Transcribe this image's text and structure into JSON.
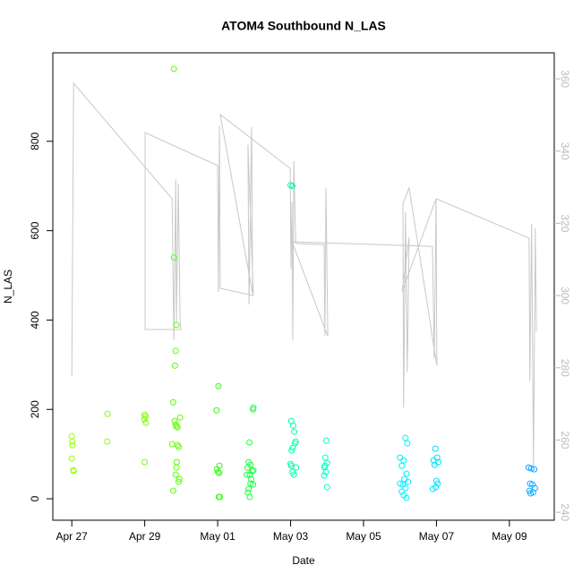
{
  "chart_data": {
    "type": "scatter",
    "title": "ATOM4 Southbound N_LAS",
    "x_label": "Date",
    "y_label": "N_LAS",
    "xlim": [
      -0.52,
      13.23
    ],
    "xticks": [
      {
        "value": 0,
        "label": "Apr 27"
      },
      {
        "value": 2,
        "label": "Apr 29"
      },
      {
        "value": 4,
        "label": "May 01"
      },
      {
        "value": 6,
        "label": "May 03"
      },
      {
        "value": 8,
        "label": "May 05"
      },
      {
        "value": 10,
        "label": "May 07"
      },
      {
        "value": 12,
        "label": "May 09"
      }
    ],
    "ylim": [
      -48,
      998
    ],
    "yticks": [
      0,
      200,
      400,
      600,
      800
    ],
    "y2lim": [
      237.8,
      367.2
    ],
    "y2ticks": [
      240,
      260,
      280,
      300,
      320,
      340,
      360
    ],
    "series": [
      {
        "type": "line",
        "axis": "y2",
        "color": "#c8c8c8",
        "x": [
          0,
          0.05,
          2.75,
          2.8,
          2.85,
          2.87,
          2.92,
          2.97,
          2.99,
          2.01,
          2.01,
          4.0,
          4.02,
          4.05,
          4.07,
          4.98,
          4.83,
          4.86,
          4.93,
          4.96,
          4.07,
          5.99,
          6.01,
          6.04,
          6.06,
          6.09,
          6.14,
          6.92,
          6.94,
          6.97,
          7.02,
          6.04,
          9.89,
          9.94,
          9.99,
          10.01,
          9.25,
          9.08,
          9.1,
          9.15,
          9.2,
          9.25,
          9.06,
          9.99,
          12.54,
          12.56,
          12.61,
          12.66,
          12.71,
          12.74
        ],
        "values": [
          277.7,
          358.8,
          326.8,
          287.6,
          332.2,
          292.6,
          331.0,
          292.6,
          290.6,
          290.6,
          345.1,
          336.0,
          301.0,
          347.1,
          302.0,
          300.0,
          341.7,
          297.5,
          346.6,
          300.5,
          350.1,
          335.2,
          307.4,
          326.0,
          287.6,
          337.2,
          314.4,
          314.1,
          288.8,
          329.8,
          288.8,
          314.9,
          313.6,
          282.6,
          326.8,
          280.7,
          329.8,
          325.3,
          269.0,
          323.1,
          278.9,
          316.1,
          301.2,
          326.8,
          315.9,
          276.4,
          319.8,
          252.9,
          318.6,
          290.1
        ]
      },
      {
        "type": "scatter",
        "color": "#9cff00",
        "x": [
          0,
          0.01,
          0.02,
          0.0,
          0.04,
          0.05
        ],
        "values": [
          140,
          128,
          120,
          90,
          64,
          62
        ]
      },
      {
        "type": "scatter",
        "color": "#8cff00",
        "x": [
          0.98,
          0.97
        ],
        "values": [
          190,
          128
        ]
      },
      {
        "type": "scatter",
        "color": "#7cff00",
        "x": [
          2.0,
          2.02,
          1.99,
          2.03,
          2.0
        ],
        "values": [
          188,
          184,
          178,
          170,
          82
        ]
      },
      {
        "type": "scatter",
        "color": "#5cff00",
        "x": [
          2.8,
          2.8,
          2.87,
          2.85,
          2.83,
          2.78,
          2.82,
          2.85,
          2.87,
          2.97,
          2.9,
          2.75,
          2.9,
          2.93,
          2.88,
          2.87,
          2.85,
          2.95,
          2.93,
          2.78
        ],
        "values": [
          962,
          540,
          389,
          331,
          298,
          216,
          174,
          166,
          162,
          182,
          160,
          122,
          120,
          116,
          82,
          70,
          54,
          44,
          38,
          18
        ]
      },
      {
        "type": "scatter",
        "color": "#33ff10",
        "x": [
          4.02,
          3.97,
          4.05,
          3.98,
          4.01,
          4.04,
          4.03,
          4.06
        ],
        "values": [
          252,
          198,
          74,
          66,
          60,
          58,
          4,
          4
        ]
      },
      {
        "type": "scatter",
        "color": "#1eff40",
        "x": [
          4.98,
          4.97,
          4.87,
          4.85,
          4.9,
          4.82,
          4.95,
          4.88,
          4.92,
          4.9,
          4.97,
          4.85,
          4.83,
          4.88,
          4.98,
          4.8
        ],
        "values": [
          204,
          200,
          126,
          82,
          76,
          70,
          62,
          54,
          44,
          34,
          32,
          22,
          14,
          4,
          64,
          54
        ]
      },
      {
        "type": "scatter",
        "color": "#00ffa8",
        "x": [
          6.0,
          6.05,
          6.02,
          6.07,
          6.1,
          6.14,
          6.12,
          6.06,
          6.03,
          6.0,
          6.02,
          6.15,
          6.05,
          6.09
        ],
        "values": [
          702,
          700,
          174,
          164,
          150,
          128,
          124,
          114,
          108,
          78,
          74,
          70,
          60,
          54
        ]
      },
      {
        "type": "scatter",
        "color": "#00ffcc",
        "x": [
          6.98,
          6.95,
          7.0,
          6.93,
          6.97,
          6.92,
          7.0,
          6.94
        ],
        "values": [
          130,
          92,
          80,
          70,
          60,
          52,
          26,
          74
        ]
      },
      {
        "type": "scatter",
        "color": "#00f0ff",
        "x": [
          9.15,
          9.2,
          9.0,
          9.1,
          9.05,
          9.18,
          9.12,
          9.22,
          9.0,
          9.08,
          9.15,
          9.05,
          9.1,
          9.18
        ],
        "values": [
          136,
          124,
          92,
          86,
          74,
          56,
          44,
          38,
          34,
          32,
          24,
          16,
          8,
          2
        ]
      },
      {
        "type": "scatter",
        "color": "#00e0ff",
        "x": [
          9.97,
          10.02,
          9.92,
          10.05,
          9.95,
          10.0,
          10.03,
          9.98,
          9.9
        ],
        "values": [
          112,
          92,
          86,
          82,
          76,
          40,
          34,
          26,
          22
        ]
      },
      {
        "type": "scatter",
        "color": "#10a8ff",
        "x": [
          12.53,
          12.6,
          12.68,
          12.57,
          12.63,
          12.55,
          12.65,
          12.58,
          12.7
        ],
        "values": [
          70,
          68,
          66,
          34,
          32,
          18,
          14,
          12,
          24
        ]
      }
    ]
  }
}
